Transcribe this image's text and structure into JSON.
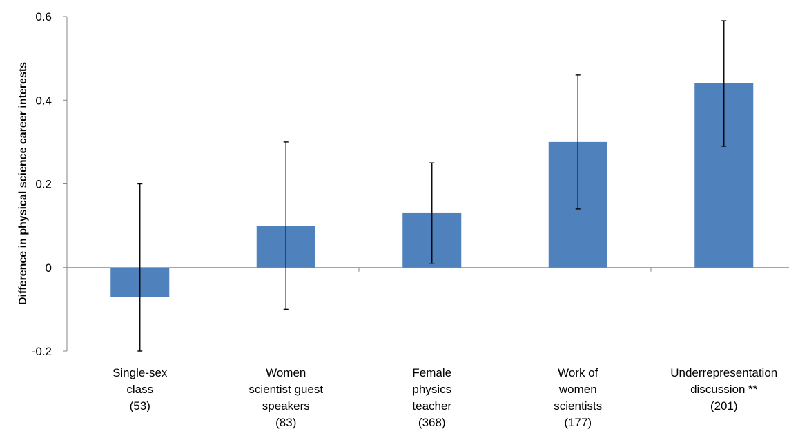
{
  "chart_data": {
    "type": "bar",
    "title": "",
    "xlabel": "",
    "ylabel": "Difference in physical science career interests",
    "ylim": [
      -0.2,
      0.6
    ],
    "yticks": [
      -0.2,
      0,
      0.2,
      0.4,
      0.6
    ],
    "ytick_labels": [
      "-0.2",
      "0",
      "0.2",
      "0.4",
      "0.6"
    ],
    "grid": false,
    "legend": "none",
    "bar_color": "#4F81BD",
    "categories": [
      [
        "Single-sex",
        "class",
        "(53)"
      ],
      [
        "Women",
        "scientist  guest",
        "speakers",
        "(83)"
      ],
      [
        "Female",
        "physics",
        "teacher",
        "(368)"
      ],
      [
        "Work of",
        "women",
        "scientists",
        "(177)"
      ],
      [
        "Underrepresentation",
        "discussion **",
        "(201)"
      ]
    ],
    "values": [
      -0.07,
      0.1,
      0.13,
      0.3,
      0.44
    ],
    "error_bars": [
      {
        "low": -0.2,
        "high": 0.2
      },
      {
        "low": -0.1,
        "high": 0.3
      },
      {
        "low": 0.01,
        "high": 0.25
      },
      {
        "low": 0.14,
        "high": 0.46
      },
      {
        "low": 0.29,
        "high": 0.59
      }
    ]
  }
}
